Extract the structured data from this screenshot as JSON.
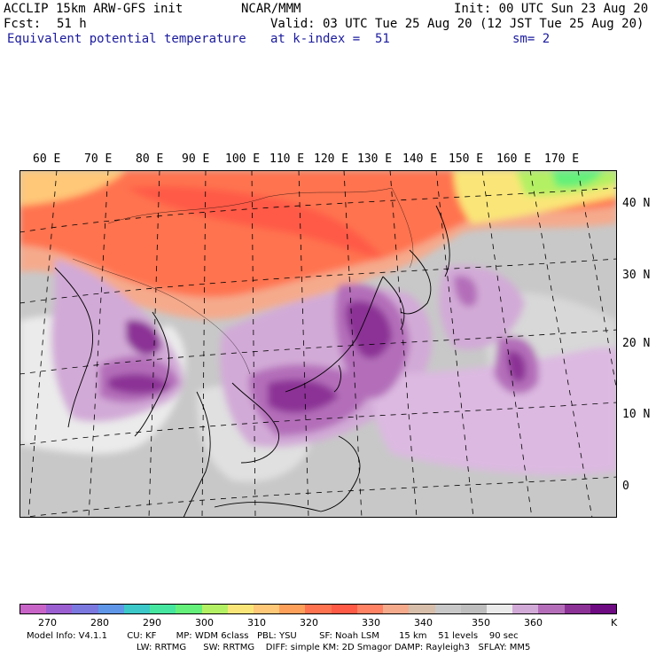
{
  "header": {
    "model": "ACCLIP 15km ARW-GFS init",
    "org": "NCAR/MMM",
    "init": "Init: 00 UTC Sun 23 Aug 20",
    "fcst_label": "Fcst:",
    "fcst_value": "51 h",
    "valid": "Valid: 03 UTC Tue 25 Aug 20 (12 JST Tue 25 Aug 20)",
    "field": "Equivalent potential temperature",
    "level": "at k-index =  51",
    "smooth": "sm= 2"
  },
  "map": {
    "lon_labels": [
      "60 E",
      "70 E",
      "80 E",
      "90 E",
      "100 E",
      "110 E",
      "120 E",
      "130 E",
      "140 E",
      "150 E",
      "160 E",
      "170 E"
    ],
    "lat_labels": [
      "40 N",
      "30 N",
      "20 N",
      "10 N",
      "0"
    ]
  },
  "colorbar": {
    "colors": [
      "#c864c8",
      "#9b5fd2",
      "#7b78e0",
      "#5f96e8",
      "#3cc8c8",
      "#46e6a0",
      "#64f07a",
      "#b4f064",
      "#fae678",
      "#ffc878",
      "#ffa05a",
      "#ff7350",
      "#ff5a46",
      "#ff8264",
      "#f5aa8c",
      "#d7beaa",
      "#c8c8c8",
      "#bebebe",
      "#ebebeb",
      "#d2aad7",
      "#b46eb9",
      "#8c3296",
      "#6e0a82"
    ],
    "labels": [
      "270",
      "280",
      "290",
      "300",
      "310",
      "320",
      "330",
      "340",
      "350",
      "360"
    ],
    "unit": "K"
  },
  "model_info": {
    "line1": "Model Info: V4.1.1       CU: KF       MP: WDM 6class   PBL: YSU        SF: Noah LSM       15 km    51 levels    90 sec",
    "line2": "LW: RRTMG      SW: RRTMG    DIFF: simple KM: 2D Smagor DAMP: Rayleigh3   SFLAY: MM5"
  }
}
